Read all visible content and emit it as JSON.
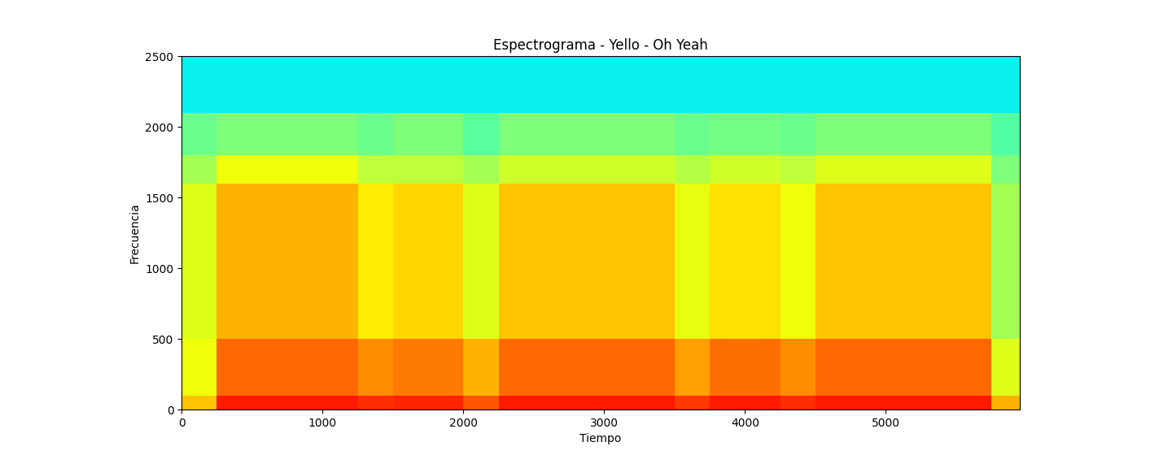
{
  "chart_data": {
    "type": "heatmap",
    "title": "Espectrograma - Yello - Oh Yeah",
    "xlabel": "Tiempo",
    "ylabel": "Frecuencia",
    "xlim": [
      0,
      5950
    ],
    "ylim": [
      0,
      2500
    ],
    "xticks": [
      0,
      1000,
      2000,
      3000,
      4000,
      5000
    ],
    "yticks": [
      0,
      500,
      1000,
      1500,
      2000,
      2500
    ],
    "value_range": [
      0,
      100
    ],
    "x_edges": [
      0,
      250,
      500,
      750,
      1000,
      1250,
      1500,
      1750,
      2000,
      2250,
      2500,
      2750,
      3000,
      3250,
      3500,
      3750,
      4000,
      4250,
      4500,
      4750,
      5000,
      5250,
      5500,
      5750,
      5950
    ],
    "y_edges": [
      0,
      100,
      200,
      300,
      400,
      500,
      600,
      700,
      800,
      900,
      1000,
      1100,
      1200,
      1300,
      1400,
      1500,
      1600,
      1700,
      1800,
      1900,
      2000,
      2100,
      2200,
      2300,
      2400,
      2500
    ],
    "cells": [
      [
        70,
        88,
        88,
        88,
        88,
        86,
        87,
        87,
        82,
        88,
        88,
        88,
        88,
        88,
        85,
        88,
        88,
        86,
        88,
        88,
        88,
        88,
        88,
        72
      ],
      [
        64,
        80,
        80,
        80,
        80,
        76,
        78,
        78,
        72,
        80,
        80,
        80,
        80,
        80,
        74,
        79,
        79,
        76,
        80,
        80,
        80,
        80,
        80,
        62
      ],
      [
        64,
        80,
        80,
        80,
        80,
        76,
        78,
        78,
        72,
        80,
        80,
        80,
        80,
        80,
        74,
        79,
        79,
        76,
        80,
        80,
        80,
        80,
        80,
        62
      ],
      [
        64,
        80,
        80,
        80,
        80,
        76,
        78,
        78,
        72,
        80,
        80,
        80,
        80,
        80,
        74,
        79,
        79,
        76,
        80,
        80,
        80,
        80,
        80,
        62
      ],
      [
        64,
        80,
        80,
        80,
        80,
        76,
        78,
        78,
        72,
        80,
        80,
        80,
        80,
        80,
        74,
        79,
        79,
        76,
        80,
        80,
        80,
        80,
        80,
        62
      ],
      [
        62,
        72,
        72,
        72,
        72,
        66,
        68,
        68,
        62,
        70,
        70,
        70,
        70,
        70,
        63,
        67,
        67,
        64,
        70,
        70,
        70,
        70,
        70,
        55
      ],
      [
        62,
        72,
        72,
        72,
        72,
        66,
        68,
        68,
        62,
        70,
        70,
        70,
        70,
        70,
        63,
        67,
        67,
        64,
        70,
        70,
        70,
        70,
        70,
        55
      ],
      [
        62,
        72,
        72,
        72,
        72,
        66,
        68,
        68,
        62,
        70,
        70,
        70,
        70,
        70,
        63,
        67,
        67,
        64,
        70,
        70,
        70,
        70,
        70,
        55
      ],
      [
        62,
        72,
        72,
        72,
        72,
        66,
        68,
        68,
        62,
        70,
        70,
        70,
        70,
        70,
        63,
        67,
        67,
        64,
        70,
        70,
        70,
        70,
        70,
        55
      ],
      [
        62,
        72,
        72,
        72,
        72,
        66,
        68,
        68,
        62,
        70,
        70,
        70,
        70,
        70,
        63,
        67,
        67,
        64,
        70,
        70,
        70,
        70,
        70,
        55
      ],
      [
        62,
        72,
        72,
        72,
        72,
        66,
        68,
        68,
        62,
        70,
        70,
        70,
        70,
        70,
        63,
        67,
        67,
        64,
        70,
        70,
        70,
        70,
        70,
        55
      ],
      [
        62,
        72,
        72,
        72,
        72,
        66,
        68,
        68,
        62,
        70,
        70,
        70,
        70,
        70,
        63,
        67,
        67,
        64,
        70,
        70,
        70,
        70,
        70,
        55
      ],
      [
        62,
        72,
        72,
        72,
        72,
        66,
        68,
        68,
        62,
        70,
        70,
        70,
        70,
        70,
        63,
        67,
        67,
        64,
        70,
        70,
        70,
        70,
        70,
        55
      ],
      [
        62,
        72,
        72,
        72,
        72,
        66,
        68,
        68,
        62,
        70,
        70,
        70,
        70,
        70,
        63,
        67,
        67,
        64,
        70,
        70,
        70,
        70,
        70,
        55
      ],
      [
        62,
        72,
        72,
        72,
        72,
        66,
        68,
        68,
        62,
        70,
        70,
        70,
        70,
        70,
        63,
        67,
        67,
        64,
        70,
        70,
        70,
        70,
        70,
        55
      ],
      [
        62,
        72,
        72,
        72,
        72,
        66,
        68,
        68,
        62,
        70,
        70,
        70,
        70,
        70,
        63,
        67,
        67,
        64,
        70,
        70,
        70,
        70,
        70,
        55
      ],
      [
        55,
        64,
        64,
        64,
        64,
        58,
        58,
        58,
        55,
        60,
        60,
        60,
        60,
        60,
        57,
        60,
        60,
        58,
        62,
        62,
        62,
        62,
        62,
        50
      ],
      [
        55,
        64,
        64,
        64,
        64,
        58,
        58,
        58,
        55,
        60,
        60,
        60,
        60,
        60,
        57,
        60,
        60,
        58,
        62,
        62,
        62,
        62,
        62,
        50
      ],
      [
        48,
        50,
        50,
        50,
        50,
        48,
        50,
        50,
        46,
        50,
        50,
        50,
        50,
        50,
        48,
        49,
        49,
        48,
        50,
        50,
        50,
        50,
        50,
        45
      ],
      [
        48,
        50,
        50,
        50,
        50,
        48,
        50,
        50,
        46,
        50,
        50,
        50,
        50,
        50,
        48,
        49,
        49,
        48,
        50,
        50,
        50,
        50,
        50,
        45
      ],
      [
        48,
        50,
        50,
        50,
        50,
        48,
        50,
        50,
        46,
        50,
        50,
        50,
        50,
        50,
        48,
        49,
        49,
        48,
        50,
        50,
        50,
        50,
        50,
        45
      ],
      [
        36,
        36,
        36,
        36,
        36,
        36,
        36,
        36,
        36,
        36,
        36,
        36,
        36,
        36,
        36,
        36,
        36,
        36,
        36,
        36,
        36,
        36,
        36,
        36
      ],
      [
        36,
        36,
        36,
        36,
        36,
        36,
        36,
        36,
        36,
        36,
        36,
        36,
        36,
        36,
        36,
        36,
        36,
        36,
        36,
        36,
        36,
        36,
        36,
        36
      ],
      [
        36,
        36,
        36,
        36,
        36,
        36,
        36,
        36,
        36,
        36,
        36,
        36,
        36,
        36,
        36,
        36,
        36,
        36,
        36,
        36,
        36,
        36,
        36,
        36
      ],
      [
        36,
        36,
        36,
        36,
        36,
        36,
        36,
        36,
        36,
        36,
        36,
        36,
        36,
        36,
        36,
        36,
        36,
        36,
        36,
        36,
        36,
        36,
        36,
        36
      ]
    ]
  }
}
